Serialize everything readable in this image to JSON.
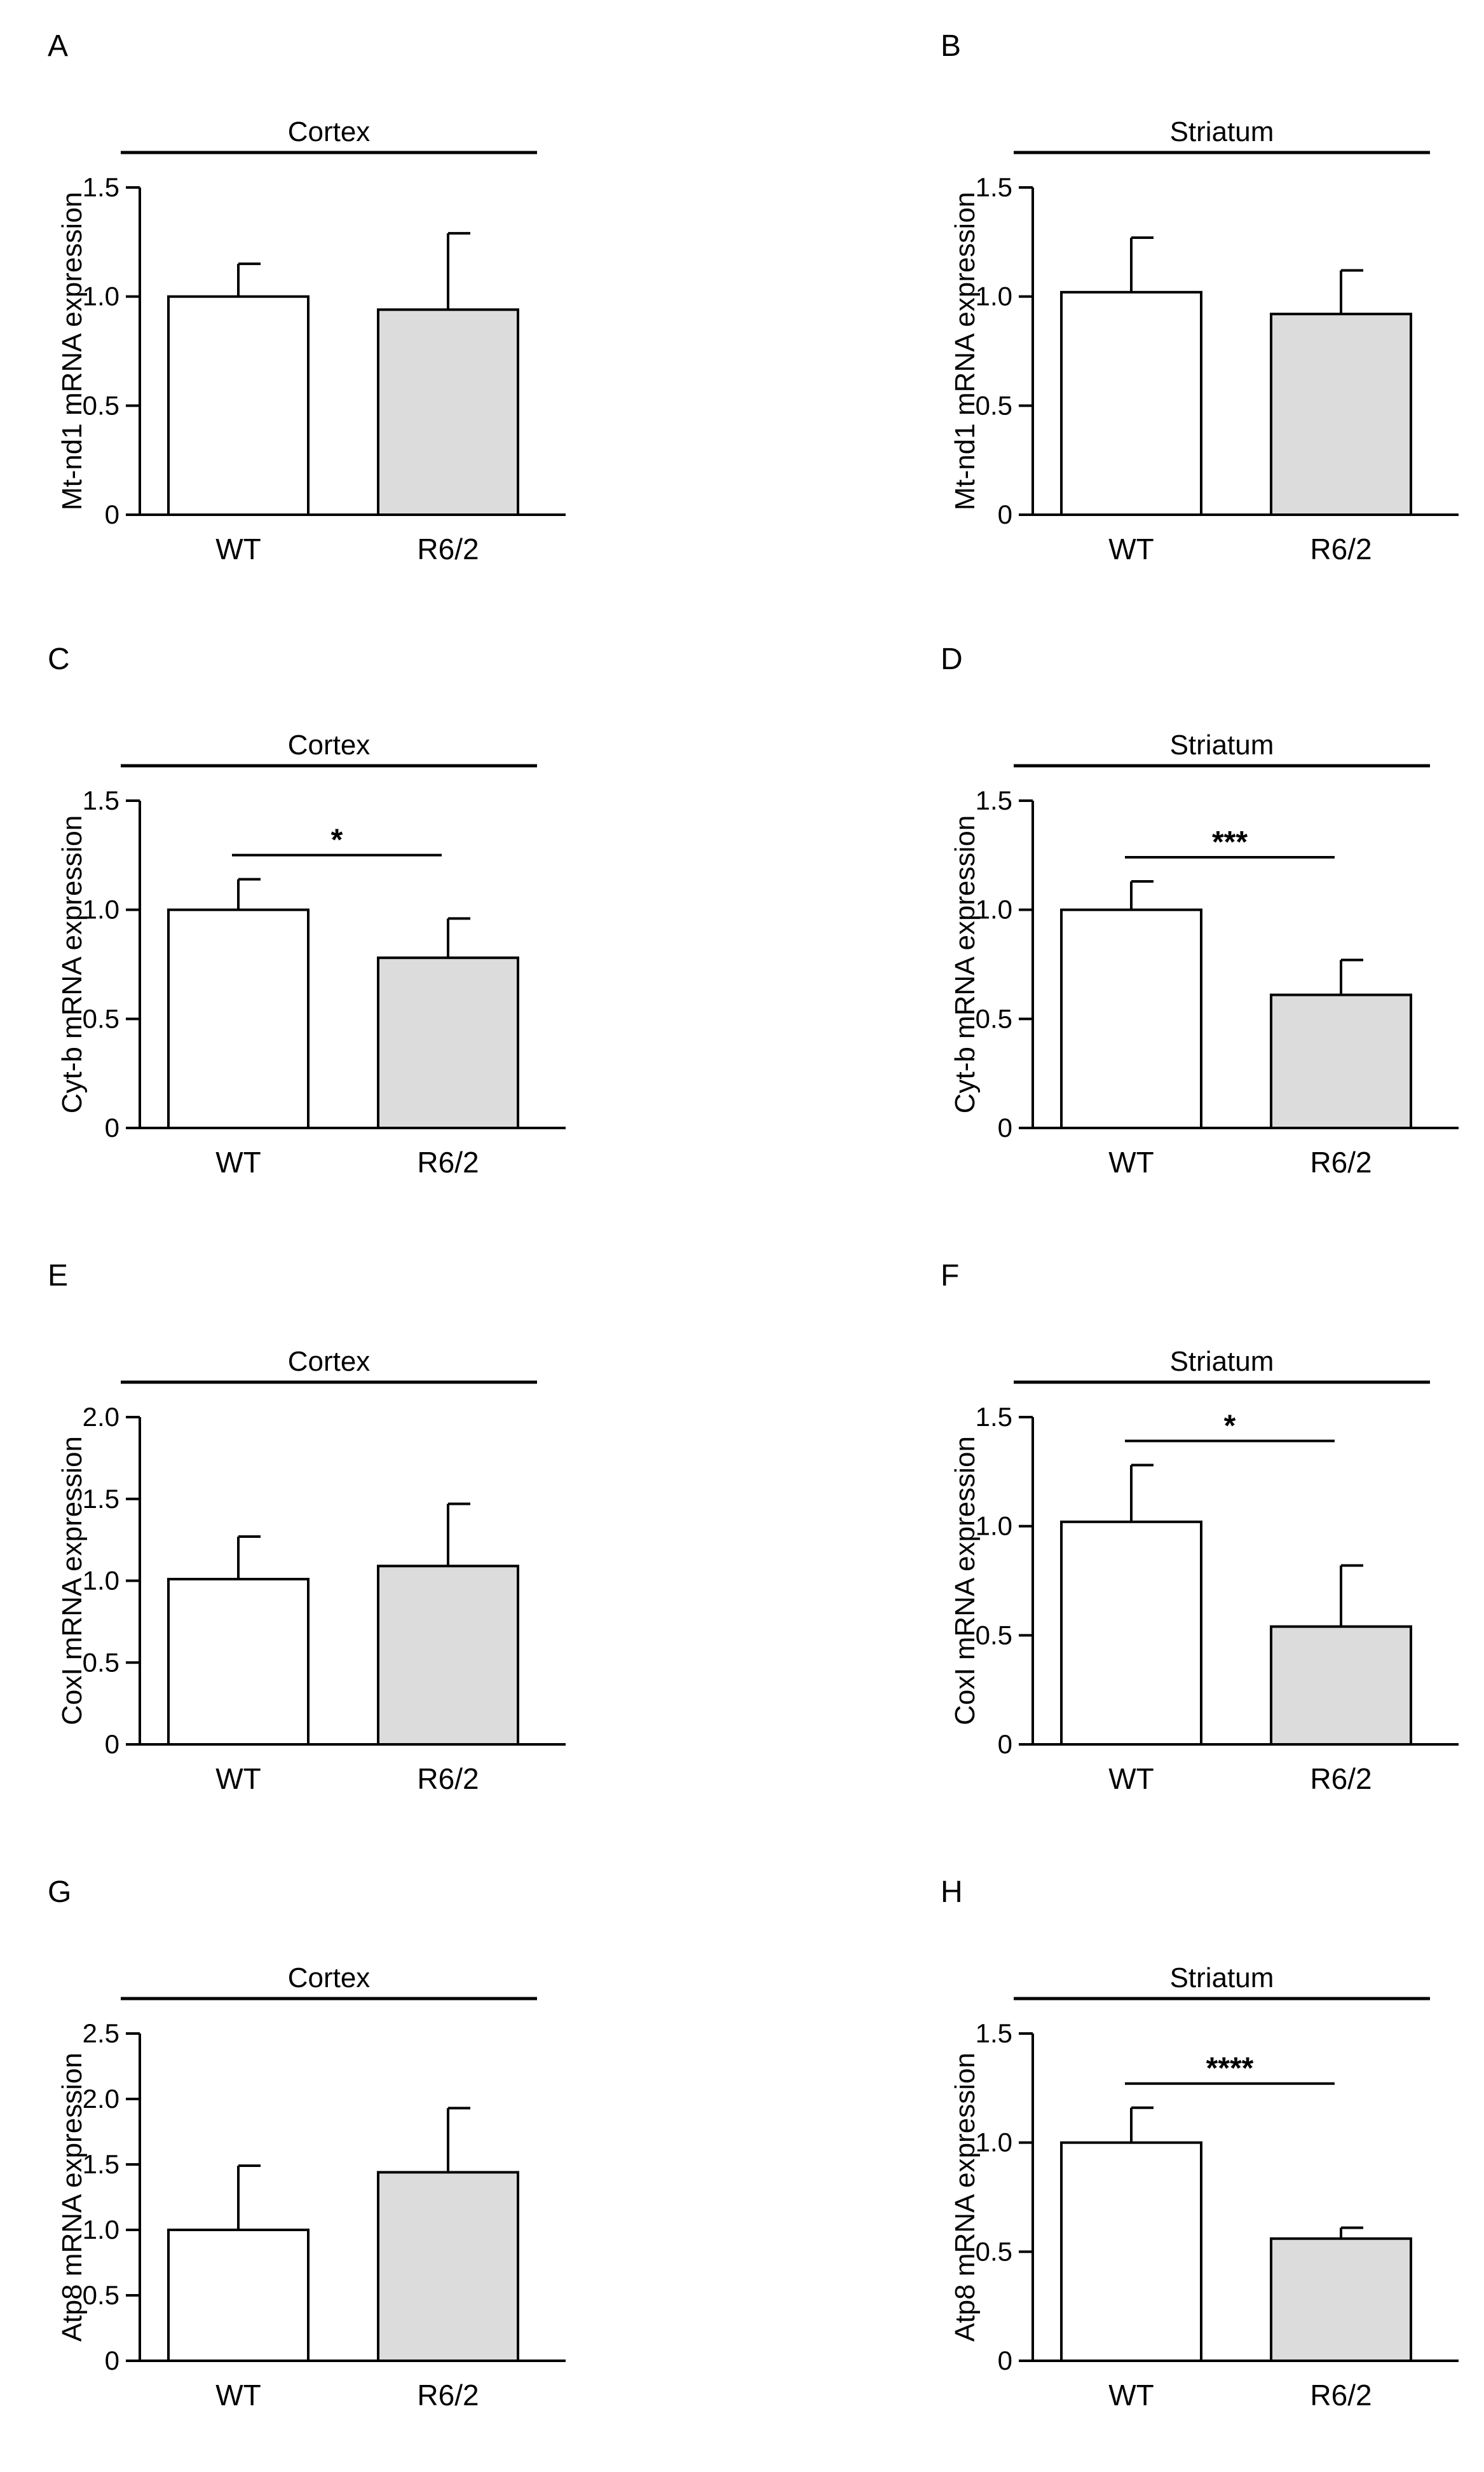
{
  "chart_data": [
    {
      "panel": "A",
      "region": "Cortex",
      "type": "bar",
      "ylabel": "Mt-nd1 mRNA expression",
      "categories": [
        "WT",
        "R6/2"
      ],
      "values": [
        1.0,
        0.94
      ],
      "errors": [
        0.15,
        0.35
      ],
      "ylim": [
        0,
        1.5
      ],
      "yticks": [
        0,
        0.5,
        1.0,
        1.5
      ],
      "ytick_labels": [
        "0",
        "0.5",
        "1.0",
        "1.5"
      ],
      "significance": ""
    },
    {
      "panel": "B",
      "region": "Striatum",
      "type": "bar",
      "ylabel": "Mt-nd1 mRNA expression",
      "categories": [
        "WT",
        "R6/2"
      ],
      "values": [
        1.02,
        0.92
      ],
      "errors": [
        0.25,
        0.2
      ],
      "ylim": [
        0,
        1.5
      ],
      "yticks": [
        0,
        0.5,
        1.0,
        1.5
      ],
      "ytick_labels": [
        "0",
        "0.5",
        "1.0",
        "1.5"
      ],
      "significance": ""
    },
    {
      "panel": "C",
      "region": "Cortex",
      "type": "bar",
      "ylabel": "Cyt-b mRNA expression",
      "categories": [
        "WT",
        "R6/2"
      ],
      "values": [
        1.0,
        0.78
      ],
      "errors": [
        0.14,
        0.18
      ],
      "ylim": [
        0,
        1.5
      ],
      "yticks": [
        0,
        0.5,
        1.0,
        1.5
      ],
      "ytick_labels": [
        "0",
        "0.5",
        "1.0",
        "1.5"
      ],
      "significance": "*"
    },
    {
      "panel": "D",
      "region": "Striatum",
      "type": "bar",
      "ylabel": "Cyt-b mRNA expression",
      "categories": [
        "WT",
        "R6/2"
      ],
      "values": [
        1.0,
        0.61
      ],
      "errors": [
        0.13,
        0.16
      ],
      "ylim": [
        0,
        1.5
      ],
      "yticks": [
        0,
        0.5,
        1.0,
        1.5
      ],
      "ytick_labels": [
        "0",
        "0.5",
        "1.0",
        "1.5"
      ],
      "significance": "***"
    },
    {
      "panel": "E",
      "region": "Cortex",
      "type": "bar",
      "ylabel": "CoxI mRNA expression",
      "categories": [
        "WT",
        "R6/2"
      ],
      "values": [
        1.01,
        1.09
      ],
      "errors": [
        0.26,
        0.38
      ],
      "ylim": [
        0,
        2.0
      ],
      "yticks": [
        0,
        0.5,
        1.0,
        1.5,
        2.0
      ],
      "ytick_labels": [
        "0",
        "0.5",
        "1.0",
        "1.5",
        "2.0"
      ],
      "significance": ""
    },
    {
      "panel": "F",
      "region": "Striatum",
      "type": "bar",
      "ylabel": "CoxI mRNA expression",
      "categories": [
        "WT",
        "R6/2"
      ],
      "values": [
        1.02,
        0.54
      ],
      "errors": [
        0.26,
        0.28
      ],
      "ylim": [
        0,
        1.5
      ],
      "yticks": [
        0,
        0.5,
        1.0,
        1.5
      ],
      "ytick_labels": [
        "0",
        "0.5",
        "1.0",
        "1.5"
      ],
      "significance": "*"
    },
    {
      "panel": "G",
      "region": "Cortex",
      "type": "bar",
      "ylabel": "Atp8 mRNA expression",
      "categories": [
        "WT",
        "R6/2"
      ],
      "values": [
        1.0,
        1.44
      ],
      "errors": [
        0.49,
        0.49
      ],
      "ylim": [
        0,
        2.5
      ],
      "yticks": [
        0,
        0.5,
        1.0,
        1.5,
        2.0,
        2.5
      ],
      "ytick_labels": [
        "0",
        "0.5",
        "1.0",
        "1.5",
        "2.0",
        "2.5"
      ],
      "significance": ""
    },
    {
      "panel": "H",
      "region": "Striatum",
      "type": "bar",
      "ylabel": "Atp8 mRNA expression",
      "categories": [
        "WT",
        "R6/2"
      ],
      "values": [
        1.0,
        0.56
      ],
      "errors": [
        0.16,
        0.05
      ],
      "ylim": [
        0,
        1.5
      ],
      "yticks": [
        0,
        0.5,
        1.0,
        1.5
      ],
      "ytick_labels": [
        "0",
        "0.5",
        "1.0",
        "1.5"
      ],
      "significance": "****"
    }
  ],
  "colors": {
    "wt_fill": "#ffffff",
    "r62_fill": "#dcdcdc",
    "stroke": "#000000"
  }
}
